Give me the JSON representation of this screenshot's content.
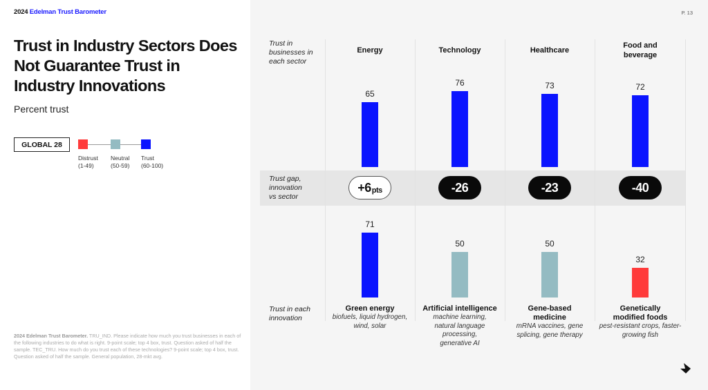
{
  "header": {
    "brand_year": "2024",
    "brand_name": "Edelman Trust Barometer",
    "page_number": "P. 13"
  },
  "title": "Trust in Industry Sectors Does Not Guarantee Trust in Industry Innovations",
  "subtitle": "Percent trust",
  "global_label": "GLOBAL 28",
  "legend": [
    {
      "label": "Distrust",
      "range": "(1-49)",
      "color": "#ff3b3b"
    },
    {
      "label": "Neutral",
      "range": "(50-59)",
      "color": "#94bbc2"
    },
    {
      "label": "Trust",
      "range": "(60-100)",
      "color": "#0a14ff"
    }
  ],
  "row_labels": {
    "sector": "Trust in businesses in each sector",
    "gap": "Trust gap, innovation vs sector",
    "innovation": "Trust in each innovation"
  },
  "footnote": {
    "source": "2024 Edelman Trust Barometer.",
    "text": " TRU_IND. Please indicate how much you trust businesses in each of the following industries to do what is right. 9-point scale; top 4 box, trust. Question asked of half the sample. TEC_TRU. How much do you trust each of these technologies? 9-point scale; top 4 box, trust. Question asked of half the sample. General population, 28-mkt avg."
  },
  "chart_data": {
    "type": "bar",
    "title": "Trust in Industry Sectors Does Not Guarantee Trust in Industry Innovations",
    "subtitle": "Percent trust",
    "categories": [
      "Energy",
      "Technology",
      "Healthcare",
      "Food and beverage"
    ],
    "series": [
      {
        "name": "Trust in businesses in each sector",
        "values": [
          65,
          76,
          73,
          72
        ]
      },
      {
        "name": "Trust in each innovation",
        "values": [
          71,
          50,
          50,
          32
        ]
      }
    ],
    "gaps": [
      {
        "value": 6,
        "label": "+6",
        "unit": "pts",
        "style": "positive"
      },
      {
        "value": -26,
        "label": "-26",
        "unit": "",
        "style": "negative"
      },
      {
        "value": -23,
        "label": "-23",
        "unit": "",
        "style": "negative"
      },
      {
        "value": -40,
        "label": "-40",
        "unit": "",
        "style": "negative"
      }
    ],
    "innovations": [
      {
        "name": "Green energy",
        "examples": "biofuels, liquid hydrogen, wind, solar"
      },
      {
        "name": "Artificial intelligence",
        "examples": "machine learning, natural language processing, generative AI"
      },
      {
        "name": "Gene-based medicine",
        "examples": "mRNA vaccines, gene splicing, gene therapy"
      },
      {
        "name": "Genetically modified foods",
        "examples": "pest-resistant crops, faster-growing fish"
      }
    ],
    "color_scale": {
      "distrust": {
        "range": [
          1,
          49
        ],
        "color": "#ff3b3b"
      },
      "neutral": {
        "range": [
          50,
          59
        ],
        "color": "#94bbc2"
      },
      "trust": {
        "range": [
          60,
          100
        ],
        "color": "#0a14ff"
      }
    },
    "xlabel": "",
    "ylabel": "",
    "ylim": [
      0,
      100
    ],
    "grid": false
  }
}
